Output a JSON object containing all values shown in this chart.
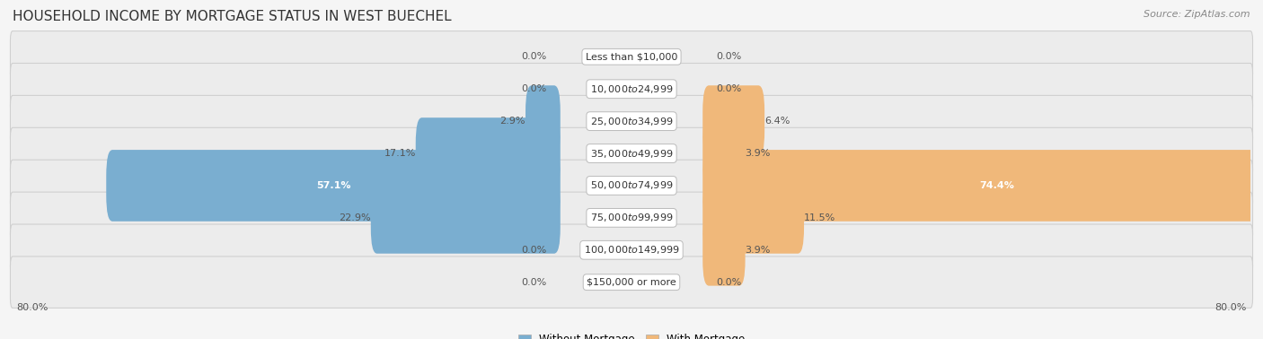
{
  "title": "HOUSEHOLD INCOME BY MORTGAGE STATUS IN WEST BUECHEL",
  "source": "Source: ZipAtlas.com",
  "categories": [
    "Less than $10,000",
    "$10,000 to $24,999",
    "$25,000 to $34,999",
    "$35,000 to $49,999",
    "$50,000 to $74,999",
    "$75,000 to $99,999",
    "$100,000 to $149,999",
    "$150,000 or more"
  ],
  "without_mortgage": [
    0.0,
    0.0,
    2.9,
    17.1,
    57.1,
    22.9,
    0.0,
    0.0
  ],
  "with_mortgage": [
    0.0,
    0.0,
    6.4,
    3.9,
    74.4,
    11.5,
    3.9,
    0.0
  ],
  "color_without": "#7aaed0",
  "color_with": "#f0b87a",
  "axis_max": 80.0,
  "bg_color": "#f5f5f5",
  "row_bg_light": "#ececec",
  "title_fontsize": 11,
  "source_fontsize": 8,
  "label_fontsize": 8,
  "category_fontsize": 8
}
